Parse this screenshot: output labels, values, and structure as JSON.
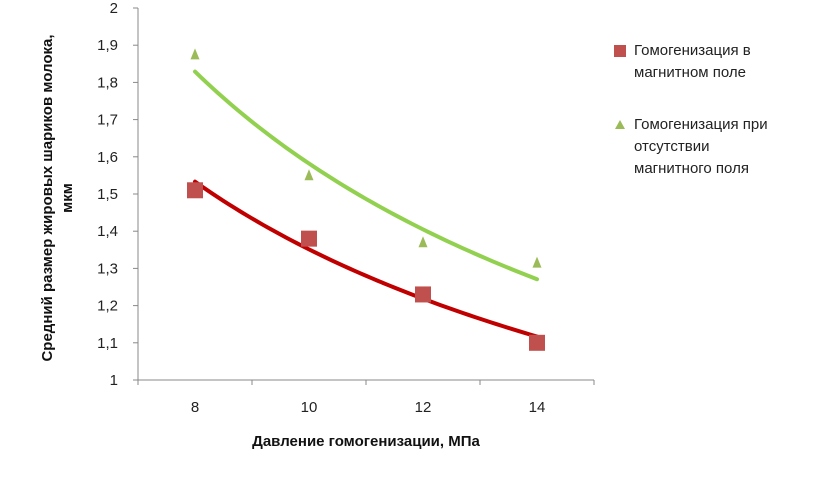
{
  "chart_data": {
    "type": "scatter",
    "x": [
      8,
      10,
      12,
      14
    ],
    "series": [
      {
        "name": "Гомогенизация в магнитном поле",
        "name_lines": [
          "Гомогенизация в",
          "магнитном поле"
        ],
        "marker": "square",
        "color": "#c0504d",
        "trend_color": "#c00000",
        "values": [
          1.51,
          1.38,
          1.23,
          1.1
        ],
        "trendline": "power"
      },
      {
        "name": "Гомогенизация при отсутствии магнитного поля",
        "name_lines": [
          "Гомогенизация при",
          "отсутствии",
          "магнитного поля"
        ],
        "marker": "triangle",
        "color": "#9bbb59",
        "trend_color": "#92d050",
        "values": [
          1.87,
          1.545,
          1.365,
          1.31
        ],
        "trendline": "power"
      }
    ],
    "xlabel": "Давление гомогенизации, МПа",
    "ylabel_lines": [
      "Средний размер жировых шариков молока,",
      "мкм"
    ],
    "xlim": [
      7,
      15
    ],
    "ylim": [
      1,
      2
    ],
    "xticks": [
      "8",
      "10",
      "12",
      "14"
    ],
    "yticks": [
      "1",
      "1,1",
      "1,2",
      "1,3",
      "1,4",
      "1,5",
      "1,6",
      "1,7",
      "1,8",
      "1,9",
      "2"
    ],
    "grid": false,
    "legend_position": "right"
  }
}
